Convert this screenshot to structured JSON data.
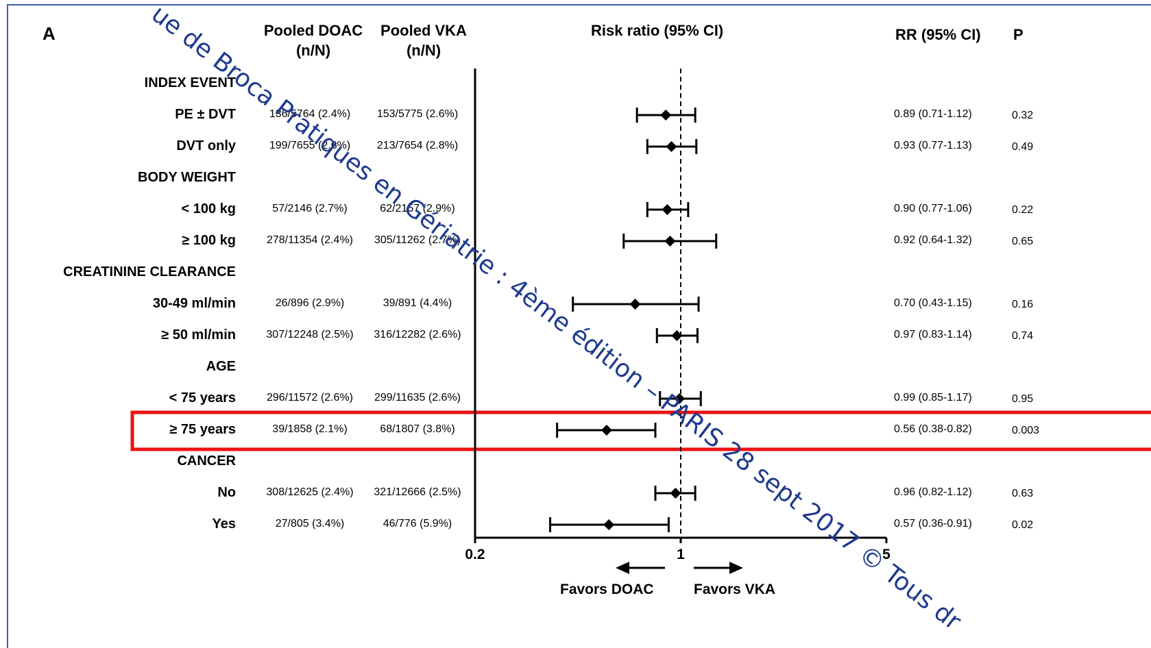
{
  "panel_label": "A",
  "headers": {
    "doac": "Pooled DOAC\n(n/N)",
    "vka": "Pooled VKA\n(n/N)",
    "plot": "Risk ratio (95% CI)",
    "rr": "RR (95% CI)",
    "p": "P"
  },
  "chart_data": {
    "type": "forest",
    "title": "Risk ratio (95% CI)",
    "x_scale": "log",
    "xlim": [
      0.2,
      5
    ],
    "x_ticks": [
      "0.2",
      "1",
      "5"
    ],
    "reference_line": 1,
    "favors_left": "Favors DOAC",
    "favors_right": "Favors VKA",
    "rows": [
      {
        "type": "section",
        "label": "INDEX EVENT"
      },
      {
        "type": "data",
        "label": "PE ± DVT",
        "doac": "136/5764 (2.4%)",
        "vka": "153/5775 (2.6%)",
        "rr": 0.89,
        "lo": 0.71,
        "hi": 1.12,
        "rr_text": "0.89 (0.71-1.12)",
        "p": "0.32"
      },
      {
        "type": "data",
        "label": "DVT only",
        "doac": "199/7655 (2.6%)",
        "vka": "213/7654 (2.8%)",
        "rr": 0.93,
        "lo": 0.77,
        "hi": 1.13,
        "rr_text": "0.93 (0.77-1.13)",
        "p": "0.49"
      },
      {
        "type": "section",
        "label": "BODY WEIGHT"
      },
      {
        "type": "data",
        "label": "< 100 kg",
        "doac": "57/2146 (2.7%)",
        "vka": "62/2157 (2.9%)",
        "rr": 0.9,
        "lo": 0.77,
        "hi": 1.06,
        "rr_text": "0.90 (0.77-1.06)",
        "p": "0.22"
      },
      {
        "type": "data",
        "label": "≥ 100 kg",
        "doac": "278/11354 (2.4%)",
        "vka": "305/11262 (2.7%)",
        "rr": 0.92,
        "lo": 0.64,
        "hi": 1.32,
        "rr_text": "0.92 (0.64-1.32)",
        "p": "0.65"
      },
      {
        "type": "section",
        "label": "CREATININE CLEARANCE"
      },
      {
        "type": "data",
        "label": "30-49 ml/min",
        "doac": "26/896 (2.9%)",
        "vka": "39/891 (4.4%)",
        "rr": 0.7,
        "lo": 0.43,
        "hi": 1.15,
        "rr_text": "0.70 (0.43-1.15)",
        "p": "0.16"
      },
      {
        "type": "data",
        "label": "≥  50 ml/min",
        "doac": "307/12248 (2.5%)",
        "vka": "316/12282 (2.6%)",
        "rr": 0.97,
        "lo": 0.83,
        "hi": 1.14,
        "rr_text": "0.97 (0.83-1.14)",
        "p": "0.74"
      },
      {
        "type": "section",
        "label": "AGE"
      },
      {
        "type": "data",
        "label": "< 75 years",
        "doac": "296/11572 (2.6%)",
        "vka": "299/11635 (2.6%)",
        "rr": 0.99,
        "lo": 0.85,
        "hi": 1.17,
        "rr_text": "0.99 (0.85-1.17)",
        "p": "0.95"
      },
      {
        "type": "data",
        "label": "≥ 75 years",
        "doac": "39/1858 (2.1%)",
        "vka": "68/1807 (3.8%)",
        "rr": 0.56,
        "lo": 0.38,
        "hi": 0.82,
        "rr_text": "0.56 (0.38-0.82)",
        "p": "0.003",
        "highlight": true
      },
      {
        "type": "section",
        "label": "CANCER"
      },
      {
        "type": "data",
        "label": "No",
        "doac": "308/12625 (2.4%)",
        "vka": "321/12666 (2.5%)",
        "rr": 0.96,
        "lo": 0.82,
        "hi": 1.12,
        "rr_text": "0.96 (0.82-1.12)",
        "p": "0.63"
      },
      {
        "type": "data",
        "label": "Yes",
        "doac": "27/805 (3.4%)",
        "vka": "46/776 (5.9%)",
        "rr": 0.57,
        "lo": 0.36,
        "hi": 0.91,
        "rr_text": "0.57 (0.36-0.91)",
        "p": "0.02"
      }
    ]
  },
  "highlight_color": "#ee1111",
  "frame_color": "#3f5f9e",
  "watermark": {
    "text": "ue de Broca   Pratiques en Gériatrie : 4ème édition – PARIS 28 sept 2017 © Tous dr",
    "color": "#1f3a8f"
  }
}
